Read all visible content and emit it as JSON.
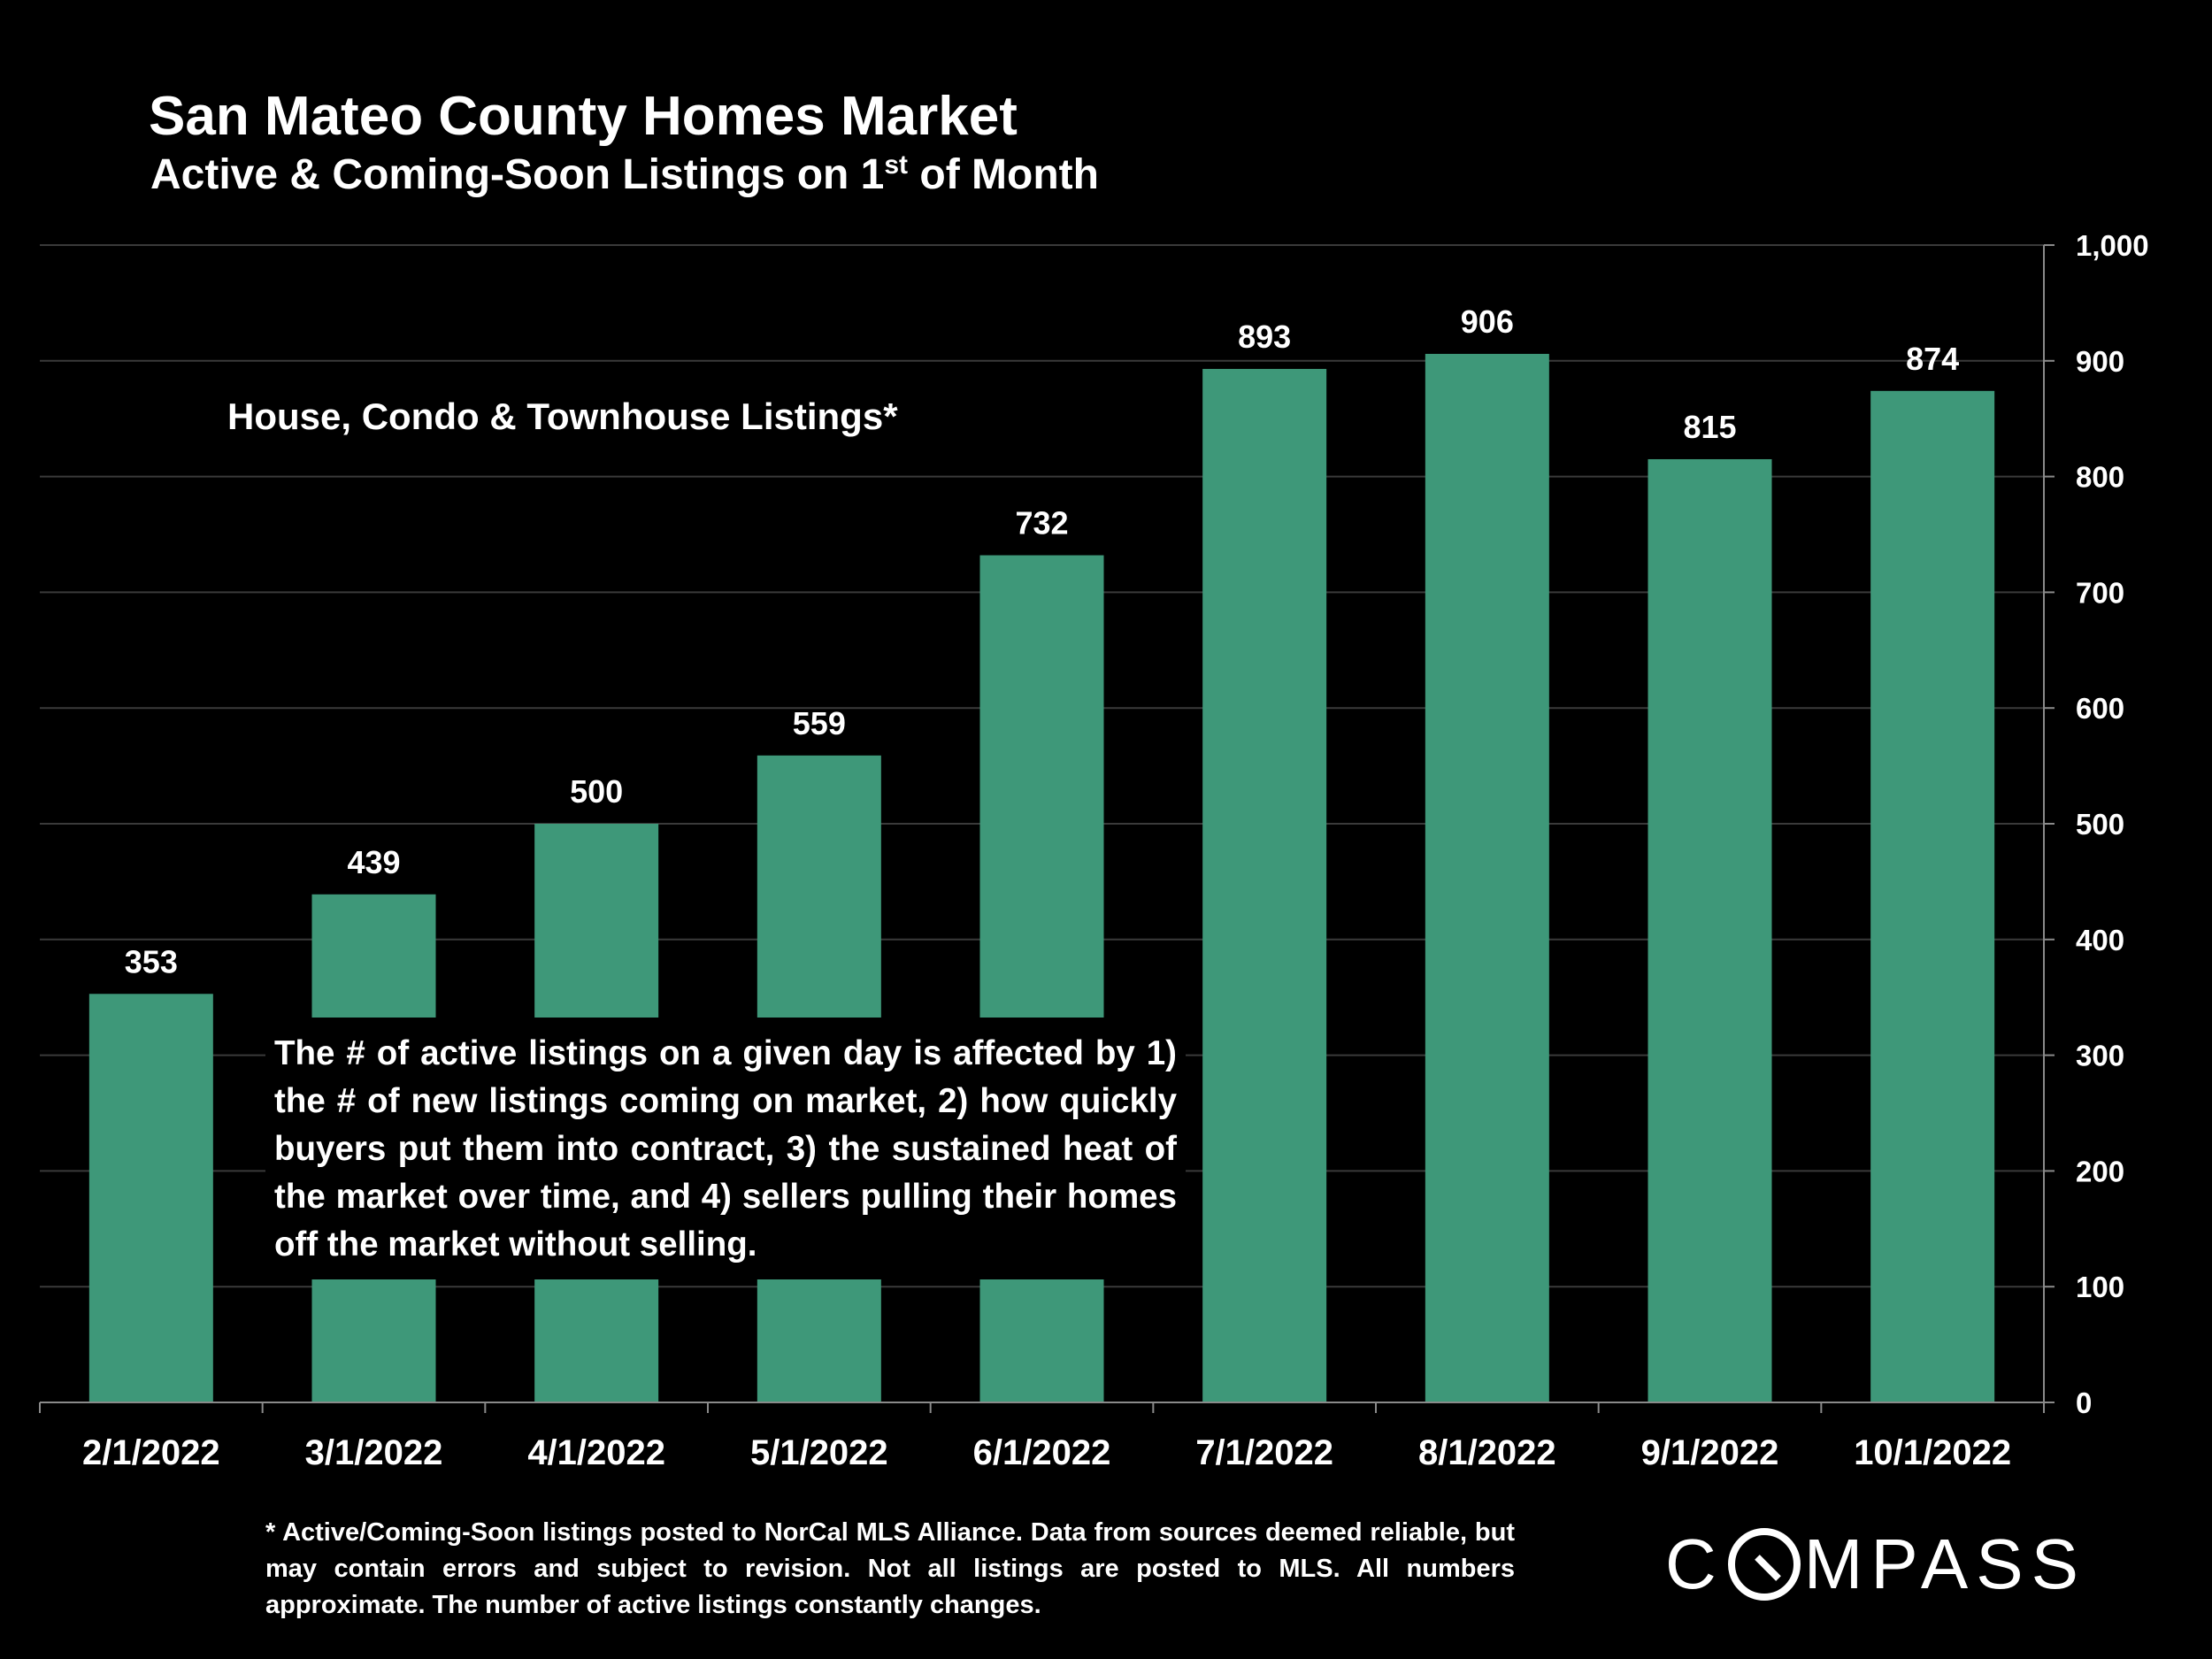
{
  "title": "San Mateo County Homes Market",
  "subtitle_main": "Active & Coming-Soon Listings on 1",
  "subtitle_sup": "st",
  "subtitle_end": " of Month",
  "series_label": "House, Condo & Townhouse Listings*",
  "note": "The # of active listings on a given day is affected by 1) the # of new listings coming on market, 2) how quickly buyers put them into contract, 3) the sustained heat of the market over time, and 4) sellers pulling their homes off the market without selling.",
  "footnote": "* Active/Coming-Soon listings posted to NorCal MLS Alliance.  Data from sources deemed reliable, but may contain errors and subject to revision.  Not all listings are posted to MLS. All numbers approximate. The number of active listings constantly changes.",
  "logo_pre": "C",
  "logo_post": "MPASS",
  "colors": {
    "bar": "#3e9879",
    "grid": "#3a3a3a",
    "axis": "#8a8a8a",
    "background": "#000000"
  },
  "chart_data": {
    "type": "bar",
    "categories": [
      "2/1/2022",
      "3/1/2022",
      "4/1/2022",
      "5/1/2022",
      "6/1/2022",
      "7/1/2022",
      "8/1/2022",
      "9/1/2022",
      "10/1/2022"
    ],
    "values": [
      353,
      439,
      500,
      559,
      732,
      893,
      906,
      815,
      874
    ],
    "ylim": [
      0,
      1000
    ],
    "yticks": [
      0,
      100,
      200,
      300,
      400,
      500,
      600,
      700,
      800,
      900,
      1000
    ],
    "ytick_labels": [
      "0",
      "100",
      "200",
      "300",
      "400",
      "500",
      "600",
      "700",
      "800",
      "900",
      "1,000"
    ],
    "y_axis_side": "right",
    "grid": true,
    "data_labels": true
  }
}
